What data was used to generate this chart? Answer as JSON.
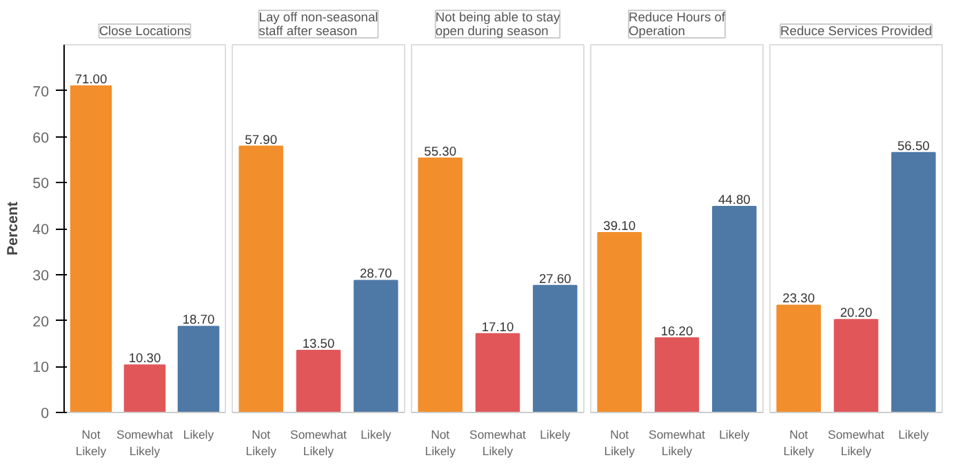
{
  "chart_data": [
    {
      "type": "bar",
      "title": "Close Locations",
      "ylabel": "Percent",
      "categories": [
        "Not Likely",
        "Somewhat Likely",
        "Likely"
      ],
      "values": [
        71.0,
        10.3,
        18.7
      ],
      "value_labels": [
        "71.00",
        "10.30",
        "18.70"
      ],
      "colors": [
        "#f28e2b",
        "#e15759",
        "#4e79a7"
      ],
      "ylim": [
        0,
        80
      ],
      "yticks": [
        0,
        10,
        20,
        30,
        40,
        50,
        60,
        70
      ],
      "grid": false
    },
    {
      "type": "bar",
      "title": "Lay off non-seasonal staff after season",
      "categories": [
        "Not Likely",
        "Somewhat Likely",
        "Likely"
      ],
      "values": [
        57.9,
        13.5,
        28.7
      ],
      "value_labels": [
        "57.90",
        "13.50",
        "28.70"
      ],
      "colors": [
        "#f28e2b",
        "#e15759",
        "#4e79a7"
      ],
      "ylim": [
        0,
        80
      ],
      "yticks": [
        0,
        10,
        20,
        30,
        40,
        50,
        60,
        70
      ],
      "tick_labels": "x",
      "grid": false
    },
    {
      "type": "bar",
      "title": "Not being able to stay open during season",
      "categories": [
        "Not Likely",
        "Somewhat Likely",
        "Likely"
      ],
      "values": [
        55.3,
        17.1,
        27.6
      ],
      "value_labels": [
        "55.30",
        "17.10",
        "27.60"
      ],
      "colors": [
        "#f28e2b",
        "#e15759",
        "#4e79a7"
      ],
      "ylim": [
        0,
        80
      ],
      "yticks": [
        0,
        10,
        20,
        30,
        40,
        50,
        60,
        70
      ],
      "tick_labels": "x",
      "grid": false
    },
    {
      "type": "bar",
      "title": "Reduce Hours of Operation",
      "categories": [
        "Not Likely",
        "Somewhat Likely",
        "Likely"
      ],
      "values": [
        39.1,
        16.2,
        44.8
      ],
      "value_labels": [
        "39.10",
        "16.20",
        "44.80"
      ],
      "colors": [
        "#f28e2b",
        "#e15759",
        "#4e79a7"
      ],
      "ylim": [
        0,
        80
      ],
      "yticks": [
        0,
        10,
        20,
        30,
        40,
        50,
        60,
        70
      ],
      "tick_labels": "x",
      "grid": false
    },
    {
      "type": "bar",
      "title": "Reduce Services Provided",
      "categories": [
        "Not Likely",
        "Somewhat Likely",
        "Likely"
      ],
      "values": [
        23.3,
        20.2,
        56.5
      ],
      "value_labels": [
        "23.30",
        "20.20",
        "56.50"
      ],
      "colors": [
        "#f28e2b",
        "#e15759",
        "#4e79a7"
      ],
      "ylim": [
        0,
        80
      ],
      "yticks": [
        0,
        10,
        20,
        30,
        40,
        50,
        60,
        70
      ],
      "tick_labels": "x",
      "grid": false
    }
  ]
}
